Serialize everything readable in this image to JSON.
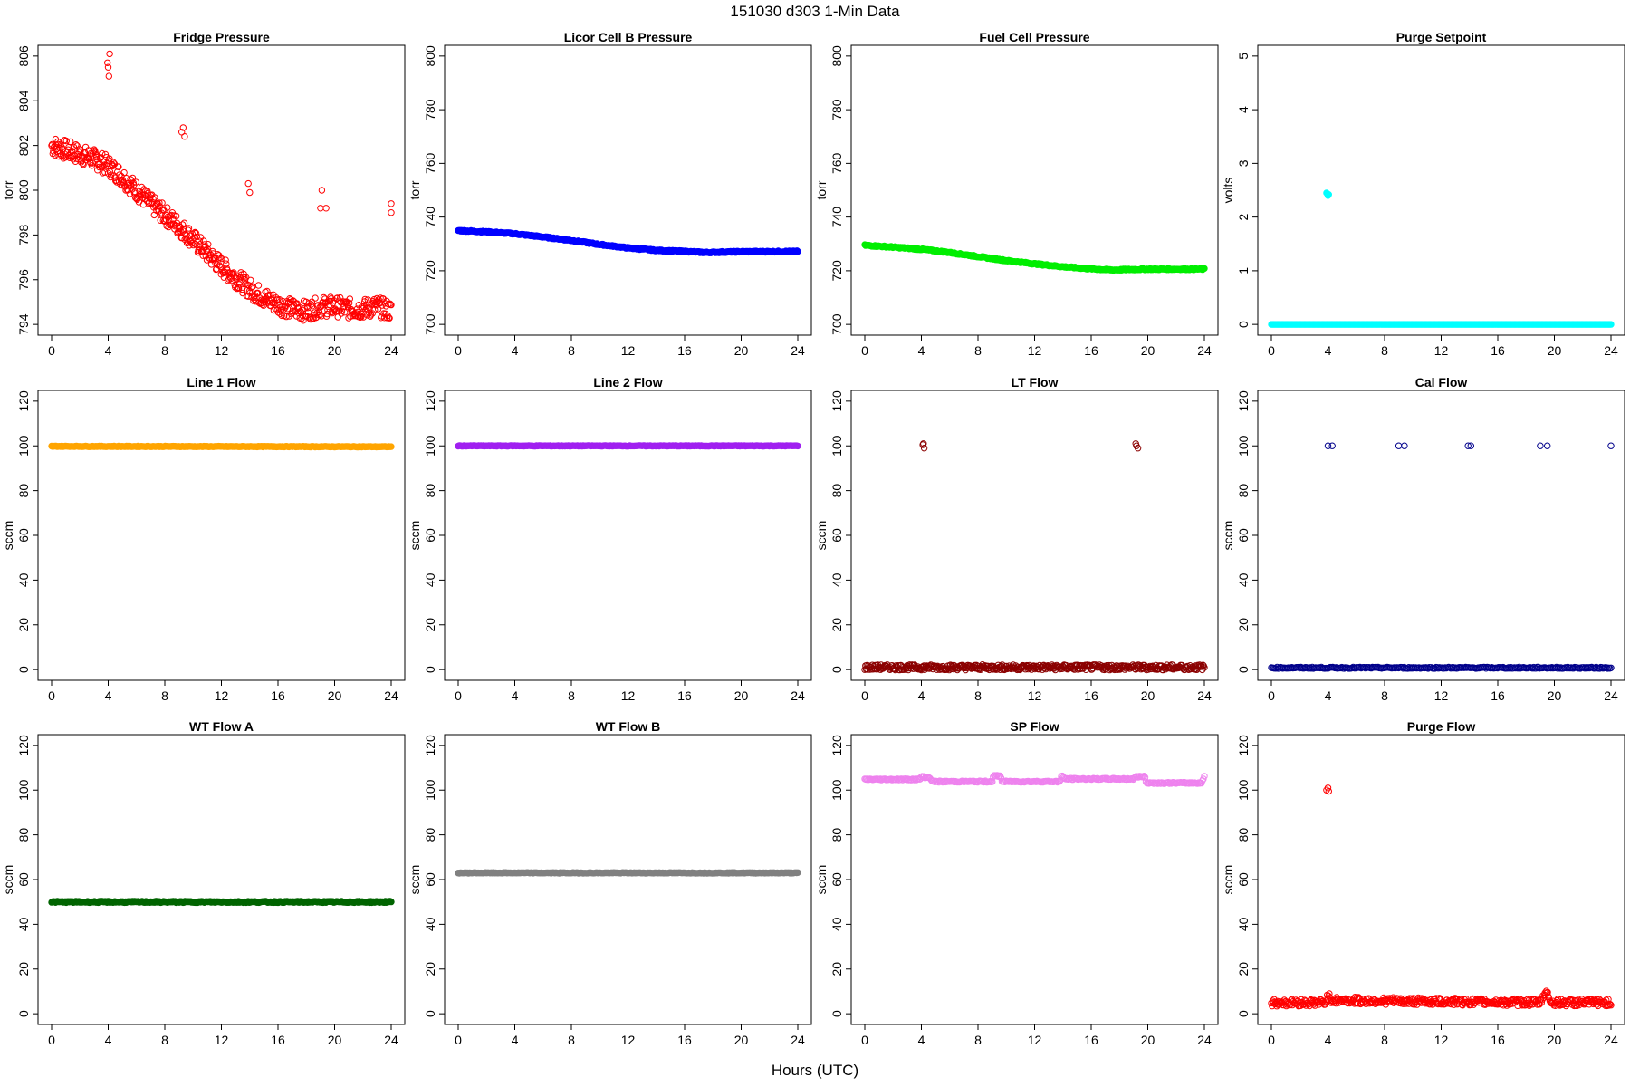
{
  "title": "151030   d303   1-Min Data",
  "xlabel": "Hours (UTC)",
  "chart_data": [
    {
      "type": "scatter",
      "title": "Fridge Pressure",
      "ylabel": "torr",
      "ylim": [
        794,
        806
      ],
      "yticks": [
        794,
        796,
        798,
        800,
        802,
        804,
        806
      ],
      "xlim": [
        0,
        24
      ],
      "xticks": [
        0,
        4,
        8,
        12,
        16,
        20,
        24
      ],
      "color": "#ff0000",
      "marker": "open",
      "series": [
        {
          "trend": [
            [
              0,
              802
            ],
            [
              1,
              801.8
            ],
            [
              2,
              801.6
            ],
            [
              3,
              801.4
            ],
            [
              4,
              801.1
            ],
            [
              5,
              800.6
            ],
            [
              6,
              800
            ],
            [
              7,
              799.4
            ],
            [
              8,
              798.9
            ],
            [
              9,
              798.4
            ],
            [
              10,
              797.8
            ],
            [
              11,
              797.2
            ],
            [
              12,
              796.6
            ],
            [
              13,
              796.1
            ],
            [
              14,
              795.6
            ],
            [
              15,
              795.2
            ],
            [
              16,
              794.9
            ],
            [
              17,
              794.7
            ],
            [
              18,
              794.6
            ],
            [
              19,
              794.8
            ],
            [
              20,
              794.8
            ],
            [
              21,
              794.7
            ],
            [
              22,
              794.7
            ],
            [
              23,
              794.8
            ],
            [
              24,
              794.6
            ]
          ],
          "outliers": [
            [
              4,
              805.5
            ],
            [
              4.1,
              806.1
            ],
            [
              4.05,
              805.1
            ],
            [
              3.95,
              805.7
            ],
            [
              9.2,
              802.6
            ],
            [
              9.3,
              802.8
            ],
            [
              9.4,
              802.4
            ],
            [
              13.9,
              800.3
            ],
            [
              14,
              799.9
            ],
            [
              19,
              799.2
            ],
            [
              19.1,
              800
            ],
            [
              19.4,
              799.2
            ],
            [
              24,
              799.4
            ],
            [
              24,
              799.0
            ]
          ]
        }
      ]
    },
    {
      "type": "scatter",
      "title": "Licor Cell B Pressure",
      "ylabel": "torr",
      "ylim": [
        700,
        800
      ],
      "yticks": [
        700,
        720,
        740,
        760,
        780,
        800
      ],
      "xlim": [
        0,
        24
      ],
      "xticks": [
        0,
        4,
        8,
        12,
        16,
        20,
        24
      ],
      "color": "#0000ff",
      "marker": "filled",
      "series": [
        {
          "trend": [
            [
              0,
              735
            ],
            [
              2,
              734.5
            ],
            [
              4,
              733.8
            ],
            [
              6,
              732.6
            ],
            [
              8,
              731.3
            ],
            [
              10,
              729.8
            ],
            [
              12,
              728.5
            ],
            [
              14,
              727.6
            ],
            [
              16,
              727.2
            ],
            [
              17.5,
              726.8
            ],
            [
              19,
              727
            ],
            [
              20,
              727.1
            ],
            [
              24,
              727.2
            ]
          ]
        }
      ]
    },
    {
      "type": "scatter",
      "title": "Fuel Cell Pressure",
      "ylabel": "torr",
      "ylim": [
        700,
        800
      ],
      "yticks": [
        700,
        720,
        740,
        760,
        780,
        800
      ],
      "xlim": [
        0,
        24
      ],
      "xticks": [
        0,
        4,
        8,
        12,
        16,
        20,
        24
      ],
      "color": "#00ee00",
      "marker": "filled",
      "series": [
        {
          "trend": [
            [
              0,
              729.5
            ],
            [
              2,
              728.8
            ],
            [
              4,
              728
            ],
            [
              6,
              726.8
            ],
            [
              8,
              725.3
            ],
            [
              10,
              723.8
            ],
            [
              12,
              722.6
            ],
            [
              14,
              721.5
            ],
            [
              16,
              720.7
            ],
            [
              17.5,
              720.3
            ],
            [
              19,
              720.5
            ],
            [
              20,
              720.6
            ],
            [
              24,
              720.6
            ]
          ]
        }
      ]
    },
    {
      "type": "scatter",
      "title": "Purge Setpoint",
      "ylabel": "volts",
      "ylim": [
        0,
        5
      ],
      "yticks": [
        0,
        1,
        2,
        3,
        4,
        5
      ],
      "xlim": [
        0,
        24
      ],
      "xticks": [
        0,
        4,
        8,
        12,
        16,
        20,
        24
      ],
      "color": "#00ffff",
      "marker": "filled",
      "series": [
        {
          "trend": [
            [
              0,
              0
            ],
            [
              24,
              0
            ]
          ],
          "outliers": [
            [
              3.9,
              2.45
            ],
            [
              4.0,
              2.4
            ],
            [
              4.05,
              2.42
            ]
          ]
        }
      ]
    },
    {
      "type": "scatter",
      "title": "Line 1 Flow",
      "ylabel": "sccm",
      "ylim": [
        0,
        120
      ],
      "yticks": [
        0,
        20,
        40,
        60,
        80,
        100,
        120
      ],
      "xlim": [
        0,
        24
      ],
      "xticks": [
        0,
        4,
        8,
        12,
        16,
        20,
        24
      ],
      "color": "#ffa500",
      "marker": "filled",
      "series": [
        {
          "trend": [
            [
              0,
              99.8
            ],
            [
              24,
              99.6
            ]
          ]
        }
      ]
    },
    {
      "type": "scatter",
      "title": "Line 2 Flow",
      "ylabel": "sccm",
      "ylim": [
        0,
        120
      ],
      "yticks": [
        0,
        20,
        40,
        60,
        80,
        100,
        120
      ],
      "xlim": [
        0,
        24
      ],
      "xticks": [
        0,
        4,
        8,
        12,
        16,
        20,
        24
      ],
      "color": "#a020f0",
      "marker": "filled",
      "series": [
        {
          "trend": [
            [
              0,
              100
            ],
            [
              24,
              100
            ]
          ]
        }
      ]
    },
    {
      "type": "scatter",
      "title": "LT Flow",
      "ylabel": "sccm",
      "ylim": [
        0,
        120
      ],
      "yticks": [
        0,
        20,
        40,
        60,
        80,
        100,
        120
      ],
      "xlim": [
        0,
        24
      ],
      "xticks": [
        0,
        4,
        8,
        12,
        16,
        20,
        24
      ],
      "color": "#8b0000",
      "marker": "open",
      "series": [
        {
          "trend": [
            [
              0,
              1
            ],
            [
              24,
              1
            ]
          ],
          "outliers": [
            [
              4.1,
              100.5
            ],
            [
              4.2,
              99
            ],
            [
              4.15,
              101
            ],
            [
              19.2,
              100
            ],
            [
              19.3,
              99
            ],
            [
              19.15,
              101
            ]
          ]
        }
      ]
    },
    {
      "type": "scatter",
      "title": "Cal Flow",
      "ylabel": "sccm",
      "ylim": [
        0,
        120
      ],
      "yticks": [
        0,
        20,
        40,
        60,
        80,
        100,
        120
      ],
      "xlim": [
        0,
        24
      ],
      "xticks": [
        0,
        4,
        8,
        12,
        16,
        20,
        24
      ],
      "color": "#00008b",
      "marker": "open",
      "series": [
        {
          "trend": [
            [
              0,
              0.8
            ],
            [
              24,
              0.8
            ]
          ],
          "outliers": [
            [
              4,
              100
            ],
            [
              4.3,
              100
            ],
            [
              9,
              100
            ],
            [
              9.4,
              100
            ],
            [
              13.9,
              100
            ],
            [
              14.1,
              100
            ],
            [
              19,
              100
            ],
            [
              19.5,
              100
            ],
            [
              24,
              100
            ]
          ]
        }
      ]
    },
    {
      "type": "scatter",
      "title": "WT Flow A",
      "ylabel": "sccm",
      "ylim": [
        0,
        120
      ],
      "yticks": [
        0,
        20,
        40,
        60,
        80,
        100,
        120
      ],
      "xlim": [
        0,
        24
      ],
      "xticks": [
        0,
        4,
        8,
        12,
        16,
        20,
        24
      ],
      "color": "#006400",
      "marker": "filled",
      "series": [
        {
          "trend": [
            [
              0,
              50
            ],
            [
              24,
              50
            ]
          ]
        }
      ]
    },
    {
      "type": "scatter",
      "title": "WT Flow B",
      "ylabel": "sccm",
      "ylim": [
        0,
        120
      ],
      "yticks": [
        0,
        20,
        40,
        60,
        80,
        100,
        120
      ],
      "xlim": [
        0,
        24
      ],
      "xticks": [
        0,
        4,
        8,
        12,
        16,
        20,
        24
      ],
      "color": "#808080",
      "marker": "filled",
      "series": [
        {
          "trend": [
            [
              0,
              63
            ],
            [
              24,
              63
            ]
          ]
        }
      ]
    },
    {
      "type": "scatter",
      "title": "SP Flow",
      "ylabel": "sccm",
      "ylim": [
        0,
        120
      ],
      "yticks": [
        0,
        20,
        40,
        60,
        80,
        100,
        120
      ],
      "xlim": [
        0,
        24
      ],
      "xticks": [
        0,
        4,
        8,
        12,
        16,
        20,
        24
      ],
      "color": "#ee82ee",
      "marker": "open",
      "series": [
        {
          "trend": [
            [
              0,
              104.8
            ],
            [
              3.9,
              104.8
            ],
            [
              4.0,
              106
            ],
            [
              4.6,
              105.5
            ],
            [
              4.8,
              103.8
            ],
            [
              9,
              103.8
            ],
            [
              9.1,
              106.3
            ],
            [
              9.6,
              106.3
            ],
            [
              9.7,
              103.8
            ],
            [
              13.8,
              103.8
            ],
            [
              13.9,
              106.3
            ],
            [
              14.2,
              105
            ],
            [
              19,
              105
            ],
            [
              19.2,
              106
            ],
            [
              19.8,
              106
            ],
            [
              19.9,
              103.2
            ],
            [
              23.8,
              103.2
            ],
            [
              24,
              106
            ]
          ]
        }
      ]
    },
    {
      "type": "scatter",
      "title": "Purge Flow",
      "ylabel": "sccm",
      "ylim": [
        0,
        120
      ],
      "yticks": [
        0,
        20,
        40,
        60,
        80,
        100,
        120
      ],
      "xlim": [
        0,
        24
      ],
      "xticks": [
        0,
        4,
        8,
        12,
        16,
        20,
        24
      ],
      "color": "#ff0000",
      "marker": "open",
      "series": [
        {
          "trend": [
            [
              0,
              5
            ],
            [
              3.8,
              5
            ],
            [
              4,
              8
            ],
            [
              4.3,
              6
            ],
            [
              19,
              5
            ],
            [
              19.4,
              10
            ],
            [
              19.8,
              5
            ],
            [
              24,
              5
            ]
          ],
          "outliers": [
            [
              3.9,
              100
            ],
            [
              4,
              101
            ],
            [
              4.05,
              99.5
            ]
          ]
        }
      ]
    }
  ]
}
